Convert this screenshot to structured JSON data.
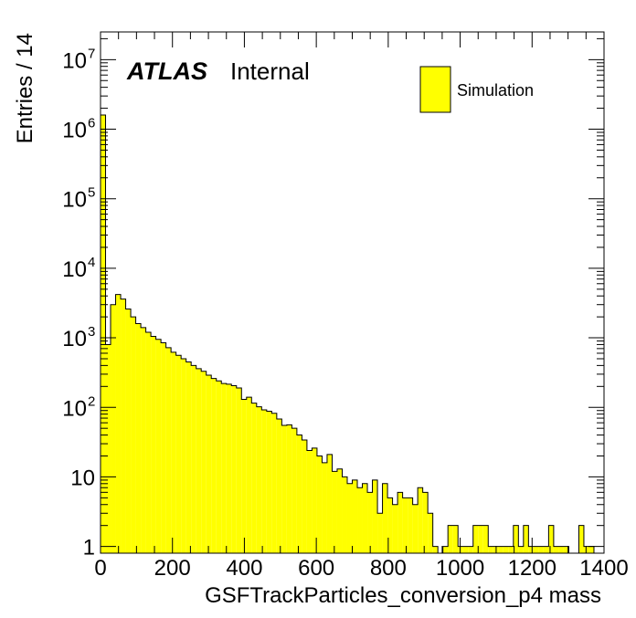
{
  "chart_data": {
    "type": "bar",
    "title": "",
    "xlabel": "GSFTrackParticles_conversion_p4 mass",
    "ylabel": "Entries / 14",
    "experiment_label": "ATLAS",
    "status_label": "Internal",
    "legend": [
      {
        "name": "Simulation",
        "color": "#ffff00",
        "position": "top-right"
      }
    ],
    "xlim": [
      0,
      1400
    ],
    "ylim": [
      0.8,
      25000000
    ],
    "y_scale": "log",
    "grid": false,
    "bin_width": 14,
    "x_ticks": [
      "0",
      "200",
      "400",
      "600",
      "800",
      "1000",
      "1200",
      "1400"
    ],
    "y_ticks": [
      {
        "value": 1,
        "base": "1",
        "exp": ""
      },
      {
        "value": 10,
        "base": "10",
        "exp": ""
      },
      {
        "value": 100,
        "base": "10",
        "exp": "2"
      },
      {
        "value": 1000,
        "base": "10",
        "exp": "3"
      },
      {
        "value": 10000,
        "base": "10",
        "exp": "4"
      },
      {
        "value": 100000,
        "base": "10",
        "exp": "5"
      },
      {
        "value": 1000000,
        "base": "10",
        "exp": "6"
      },
      {
        "value": 10000000,
        "base": "10",
        "exp": "7"
      }
    ],
    "series": [
      {
        "name": "Simulation",
        "color": "#ffff00",
        "bin_low_edges": [
          0,
          14,
          28,
          42,
          56,
          70,
          84,
          98,
          112,
          126,
          140,
          154,
          168,
          182,
          196,
          210,
          224,
          238,
          252,
          266,
          280,
          294,
          308,
          322,
          336,
          350,
          364,
          378,
          392,
          406,
          420,
          434,
          448,
          462,
          476,
          490,
          504,
          518,
          532,
          546,
          560,
          574,
          588,
          602,
          616,
          630,
          644,
          658,
          672,
          686,
          700,
          714,
          728,
          742,
          756,
          770,
          784,
          798,
          812,
          826,
          840,
          854,
          868,
          882,
          896,
          910,
          924,
          938,
          952,
          966,
          980,
          994,
          1008,
          1022,
          1036,
          1050,
          1064,
          1078,
          1092,
          1106,
          1120,
          1134,
          1148,
          1162,
          1176,
          1190,
          1204,
          1218,
          1232,
          1246,
          1260,
          1274,
          1288,
          1302,
          1316,
          1330,
          1344,
          1358,
          1372,
          1386
        ],
        "values": [
          1600000,
          800,
          3000,
          4200,
          3600,
          2600,
          2000,
          1600,
          1400,
          1200,
          1050,
          950,
          850,
          720,
          620,
          560,
          500,
          450,
          400,
          360,
          330,
          290,
          260,
          240,
          220,
          215,
          205,
          190,
          130,
          140,
          115,
          102,
          92,
          88,
          82,
          68,
          55,
          56,
          50,
          40,
          34,
          24,
          26,
          20,
          16,
          21,
          12,
          13,
          10,
          8,
          9,
          7,
          8,
          6,
          9,
          3,
          8,
          5,
          4,
          6,
          5,
          5,
          4,
          7,
          6,
          3,
          1,
          0,
          1,
          2,
          2,
          1,
          1,
          1,
          2,
          2,
          2,
          1,
          1,
          1,
          1,
          1,
          2,
          1,
          2,
          1,
          1,
          1,
          1,
          2,
          1,
          1,
          1,
          0,
          0,
          2,
          1,
          1,
          0,
          0
        ]
      }
    ]
  }
}
